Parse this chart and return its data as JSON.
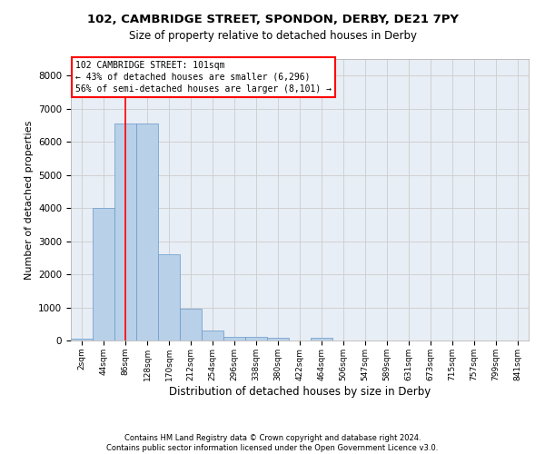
{
  "title1": "102, CAMBRIDGE STREET, SPONDON, DERBY, DE21 7PY",
  "title2": "Size of property relative to detached houses in Derby",
  "xlabel": "Distribution of detached houses by size in Derby",
  "ylabel": "Number of detached properties",
  "bin_labels": [
    "2sqm",
    "44sqm",
    "86sqm",
    "128sqm",
    "170sqm",
    "212sqm",
    "254sqm",
    "296sqm",
    "338sqm",
    "380sqm",
    "422sqm",
    "464sqm",
    "506sqm",
    "547sqm",
    "589sqm",
    "631sqm",
    "673sqm",
    "715sqm",
    "757sqm",
    "799sqm",
    "841sqm"
  ],
  "bar_values": [
    60,
    4000,
    6550,
    6550,
    2600,
    950,
    300,
    120,
    100,
    70,
    0,
    80,
    0,
    0,
    0,
    0,
    0,
    0,
    0,
    0,
    0
  ],
  "bar_color": "#b8d0e8",
  "bar_edge_color": "#6699cc",
  "grid_color": "#cccccc",
  "bg_color": "#e8eef5",
  "annotation_line1": "102 CAMBRIDGE STREET: 101sqm",
  "annotation_line2": "← 43% of detached houses are smaller (6,296)",
  "annotation_line3": "56% of semi-detached houses are larger (8,101) →",
  "annotation_box_color": "white",
  "annotation_box_edge": "red",
  "vline_color": "red",
  "vline_x": 2.0,
  "footer1": "Contains HM Land Registry data © Crown copyright and database right 2024.",
  "footer2": "Contains public sector information licensed under the Open Government Licence v3.0.",
  "ylim": [
    0,
    8500
  ],
  "yticks": [
    0,
    1000,
    2000,
    3000,
    4000,
    5000,
    6000,
    7000,
    8000
  ]
}
